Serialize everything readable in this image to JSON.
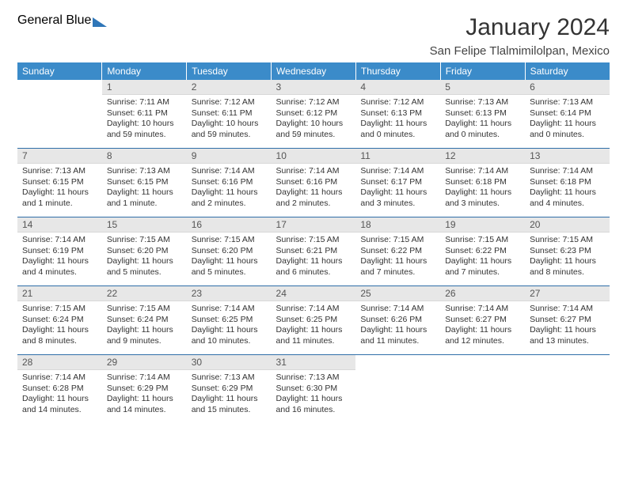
{
  "brand": {
    "line1": "General",
    "line2": "Blue"
  },
  "title": "January 2024",
  "subtitle": "San Felipe Tlalmimilolpan, Mexico",
  "colors": {
    "header_bg": "#3b8bc9",
    "header_text": "#ffffff",
    "daynum_bg": "#e7e7e7",
    "week_sep": "#2f6ea8",
    "brand_blue": "#2f76b8",
    "text": "#333333"
  },
  "weekdays": [
    "Sunday",
    "Monday",
    "Tuesday",
    "Wednesday",
    "Thursday",
    "Friday",
    "Saturday"
  ],
  "weeks": [
    [
      {
        "n": "",
        "empty": true,
        "l1": "",
        "l2": "",
        "l3": "",
        "l4": ""
      },
      {
        "n": "1",
        "l1": "Sunrise: 7:11 AM",
        "l2": "Sunset: 6:11 PM",
        "l3": "Daylight: 10 hours",
        "l4": "and 59 minutes."
      },
      {
        "n": "2",
        "l1": "Sunrise: 7:12 AM",
        "l2": "Sunset: 6:11 PM",
        "l3": "Daylight: 10 hours",
        "l4": "and 59 minutes."
      },
      {
        "n": "3",
        "l1": "Sunrise: 7:12 AM",
        "l2": "Sunset: 6:12 PM",
        "l3": "Daylight: 10 hours",
        "l4": "and 59 minutes."
      },
      {
        "n": "4",
        "l1": "Sunrise: 7:12 AM",
        "l2": "Sunset: 6:13 PM",
        "l3": "Daylight: 11 hours",
        "l4": "and 0 minutes."
      },
      {
        "n": "5",
        "l1": "Sunrise: 7:13 AM",
        "l2": "Sunset: 6:13 PM",
        "l3": "Daylight: 11 hours",
        "l4": "and 0 minutes."
      },
      {
        "n": "6",
        "l1": "Sunrise: 7:13 AM",
        "l2": "Sunset: 6:14 PM",
        "l3": "Daylight: 11 hours",
        "l4": "and 0 minutes."
      }
    ],
    [
      {
        "n": "7",
        "l1": "Sunrise: 7:13 AM",
        "l2": "Sunset: 6:15 PM",
        "l3": "Daylight: 11 hours",
        "l4": "and 1 minute."
      },
      {
        "n": "8",
        "l1": "Sunrise: 7:13 AM",
        "l2": "Sunset: 6:15 PM",
        "l3": "Daylight: 11 hours",
        "l4": "and 1 minute."
      },
      {
        "n": "9",
        "l1": "Sunrise: 7:14 AM",
        "l2": "Sunset: 6:16 PM",
        "l3": "Daylight: 11 hours",
        "l4": "and 2 minutes."
      },
      {
        "n": "10",
        "l1": "Sunrise: 7:14 AM",
        "l2": "Sunset: 6:16 PM",
        "l3": "Daylight: 11 hours",
        "l4": "and 2 minutes."
      },
      {
        "n": "11",
        "l1": "Sunrise: 7:14 AM",
        "l2": "Sunset: 6:17 PM",
        "l3": "Daylight: 11 hours",
        "l4": "and 3 minutes."
      },
      {
        "n": "12",
        "l1": "Sunrise: 7:14 AM",
        "l2": "Sunset: 6:18 PM",
        "l3": "Daylight: 11 hours",
        "l4": "and 3 minutes."
      },
      {
        "n": "13",
        "l1": "Sunrise: 7:14 AM",
        "l2": "Sunset: 6:18 PM",
        "l3": "Daylight: 11 hours",
        "l4": "and 4 minutes."
      }
    ],
    [
      {
        "n": "14",
        "l1": "Sunrise: 7:14 AM",
        "l2": "Sunset: 6:19 PM",
        "l3": "Daylight: 11 hours",
        "l4": "and 4 minutes."
      },
      {
        "n": "15",
        "l1": "Sunrise: 7:15 AM",
        "l2": "Sunset: 6:20 PM",
        "l3": "Daylight: 11 hours",
        "l4": "and 5 minutes."
      },
      {
        "n": "16",
        "l1": "Sunrise: 7:15 AM",
        "l2": "Sunset: 6:20 PM",
        "l3": "Daylight: 11 hours",
        "l4": "and 5 minutes."
      },
      {
        "n": "17",
        "l1": "Sunrise: 7:15 AM",
        "l2": "Sunset: 6:21 PM",
        "l3": "Daylight: 11 hours",
        "l4": "and 6 minutes."
      },
      {
        "n": "18",
        "l1": "Sunrise: 7:15 AM",
        "l2": "Sunset: 6:22 PM",
        "l3": "Daylight: 11 hours",
        "l4": "and 7 minutes."
      },
      {
        "n": "19",
        "l1": "Sunrise: 7:15 AM",
        "l2": "Sunset: 6:22 PM",
        "l3": "Daylight: 11 hours",
        "l4": "and 7 minutes."
      },
      {
        "n": "20",
        "l1": "Sunrise: 7:15 AM",
        "l2": "Sunset: 6:23 PM",
        "l3": "Daylight: 11 hours",
        "l4": "and 8 minutes."
      }
    ],
    [
      {
        "n": "21",
        "l1": "Sunrise: 7:15 AM",
        "l2": "Sunset: 6:24 PM",
        "l3": "Daylight: 11 hours",
        "l4": "and 8 minutes."
      },
      {
        "n": "22",
        "l1": "Sunrise: 7:15 AM",
        "l2": "Sunset: 6:24 PM",
        "l3": "Daylight: 11 hours",
        "l4": "and 9 minutes."
      },
      {
        "n": "23",
        "l1": "Sunrise: 7:14 AM",
        "l2": "Sunset: 6:25 PM",
        "l3": "Daylight: 11 hours",
        "l4": "and 10 minutes."
      },
      {
        "n": "24",
        "l1": "Sunrise: 7:14 AM",
        "l2": "Sunset: 6:25 PM",
        "l3": "Daylight: 11 hours",
        "l4": "and 11 minutes."
      },
      {
        "n": "25",
        "l1": "Sunrise: 7:14 AM",
        "l2": "Sunset: 6:26 PM",
        "l3": "Daylight: 11 hours",
        "l4": "and 11 minutes."
      },
      {
        "n": "26",
        "l1": "Sunrise: 7:14 AM",
        "l2": "Sunset: 6:27 PM",
        "l3": "Daylight: 11 hours",
        "l4": "and 12 minutes."
      },
      {
        "n": "27",
        "l1": "Sunrise: 7:14 AM",
        "l2": "Sunset: 6:27 PM",
        "l3": "Daylight: 11 hours",
        "l4": "and 13 minutes."
      }
    ],
    [
      {
        "n": "28",
        "l1": "Sunrise: 7:14 AM",
        "l2": "Sunset: 6:28 PM",
        "l3": "Daylight: 11 hours",
        "l4": "and 14 minutes."
      },
      {
        "n": "29",
        "l1": "Sunrise: 7:14 AM",
        "l2": "Sunset: 6:29 PM",
        "l3": "Daylight: 11 hours",
        "l4": "and 14 minutes."
      },
      {
        "n": "30",
        "l1": "Sunrise: 7:13 AM",
        "l2": "Sunset: 6:29 PM",
        "l3": "Daylight: 11 hours",
        "l4": "and 15 minutes."
      },
      {
        "n": "31",
        "l1": "Sunrise: 7:13 AM",
        "l2": "Sunset: 6:30 PM",
        "l3": "Daylight: 11 hours",
        "l4": "and 16 minutes."
      },
      {
        "n": "",
        "empty": true,
        "l1": "",
        "l2": "",
        "l3": "",
        "l4": ""
      },
      {
        "n": "",
        "empty": true,
        "l1": "",
        "l2": "",
        "l3": "",
        "l4": ""
      },
      {
        "n": "",
        "empty": true,
        "l1": "",
        "l2": "",
        "l3": "",
        "l4": ""
      }
    ]
  ]
}
